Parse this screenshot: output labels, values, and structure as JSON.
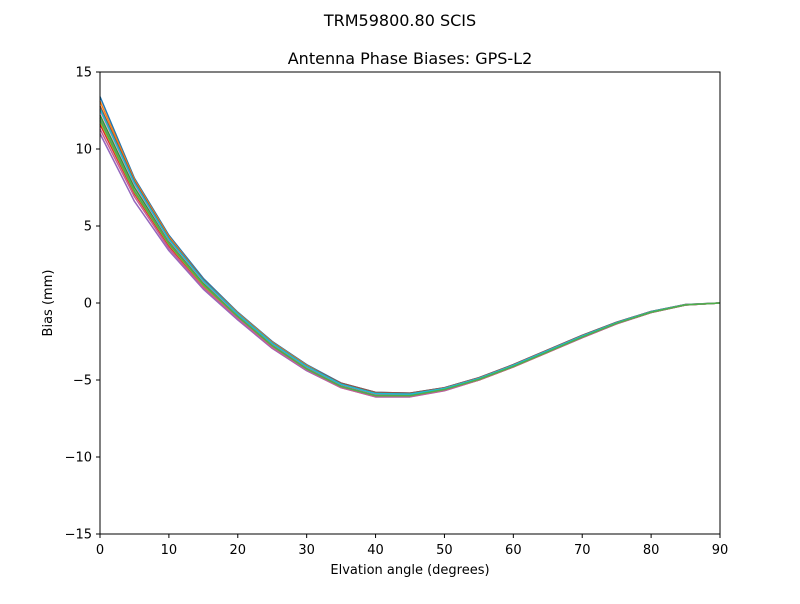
{
  "suptitle": "TRM59800.80      SCIS",
  "chart_data": {
    "type": "line",
    "title": "Antenna Phase Biases: GPS-L2",
    "xlabel": "Elvation angle (degrees)",
    "ylabel": "Bias (mm)",
    "xlim": [
      0,
      90
    ],
    "ylim": [
      -15,
      15
    ],
    "xticks": [
      0,
      10,
      20,
      30,
      40,
      50,
      60,
      70,
      80,
      90
    ],
    "yticks": [
      -15,
      -10,
      -5,
      0,
      5,
      10,
      15
    ],
    "xtick_labels": [
      "0",
      "10",
      "20",
      "30",
      "40",
      "50",
      "60",
      "70",
      "80",
      "90"
    ],
    "ytick_labels": [
      "−15",
      "−10",
      "−5",
      "0",
      "5",
      "10",
      "15"
    ],
    "grid": false,
    "legend": "none",
    "x": [
      0,
      5,
      10,
      15,
      20,
      25,
      30,
      35,
      40,
      45,
      50,
      55,
      60,
      65,
      70,
      75,
      80,
      85,
      90
    ],
    "series": [
      {
        "color": "#1f77b4",
        "values": [
          13.4,
          8.1,
          4.4,
          1.6,
          -0.6,
          -2.5,
          -4.0,
          -5.2,
          -5.8,
          -5.85,
          -5.5,
          -4.85,
          -4.0,
          -3.05,
          -2.1,
          -1.25,
          -0.55,
          -0.1,
          0.0
        ]
      },
      {
        "color": "#ff7f0e",
        "values": [
          13.1,
          8.0,
          4.3,
          1.5,
          -0.65,
          -2.55,
          -4.05,
          -5.25,
          -5.85,
          -5.9,
          -5.55,
          -4.9,
          -4.05,
          -3.1,
          -2.15,
          -1.3,
          -0.6,
          -0.12,
          0.0
        ]
      },
      {
        "color": "#2ca02c",
        "values": [
          12.2,
          7.5,
          4.0,
          1.3,
          -0.8,
          -2.7,
          -4.2,
          -5.35,
          -5.95,
          -6.0,
          -5.6,
          -4.95,
          -4.1,
          -3.15,
          -2.2,
          -1.3,
          -0.6,
          -0.12,
          0.0
        ]
      },
      {
        "color": "#d62728",
        "values": [
          11.6,
          7.1,
          3.7,
          1.1,
          -0.95,
          -2.8,
          -4.3,
          -5.45,
          -6.05,
          -6.05,
          -5.65,
          -5.0,
          -4.15,
          -3.2,
          -2.25,
          -1.35,
          -0.62,
          -0.13,
          0.0
        ]
      },
      {
        "color": "#9467bd",
        "values": [
          11.0,
          6.6,
          3.4,
          0.9,
          -1.1,
          -2.95,
          -4.4,
          -5.5,
          -6.1,
          -6.1,
          -5.7,
          -5.0,
          -4.15,
          -3.2,
          -2.25,
          -1.35,
          -0.62,
          -0.13,
          0.0
        ]
      },
      {
        "color": "#8c564b",
        "values": [
          12.8,
          7.9,
          4.2,
          1.5,
          -0.7,
          -2.6,
          -4.1,
          -5.2,
          -5.8,
          -5.85,
          -5.5,
          -4.85,
          -4.0,
          -3.05,
          -2.1,
          -1.25,
          -0.55,
          -0.1,
          0.0
        ]
      },
      {
        "color": "#e377c2",
        "values": [
          12.5,
          7.7,
          4.1,
          1.4,
          -0.75,
          -2.65,
          -4.15,
          -5.3,
          -5.9,
          -5.95,
          -5.55,
          -4.9,
          -4.05,
          -3.1,
          -2.15,
          -1.3,
          -0.58,
          -0.11,
          0.0
        ]
      },
      {
        "color": "#7f7f7f",
        "values": [
          12.0,
          7.3,
          3.9,
          1.2,
          -0.85,
          -2.75,
          -4.25,
          -5.4,
          -6.0,
          -6.0,
          -5.6,
          -4.95,
          -4.1,
          -3.15,
          -2.2,
          -1.32,
          -0.6,
          -0.12,
          0.0
        ]
      },
      {
        "color": "#bcbd22",
        "values": [
          11.8,
          7.2,
          3.8,
          1.15,
          -0.9,
          -2.8,
          -4.3,
          -5.45,
          -6.05,
          -6.05,
          -5.65,
          -5.0,
          -4.15,
          -3.2,
          -2.22,
          -1.33,
          -0.61,
          -0.12,
          0.0
        ]
      },
      {
        "color": "#17becf",
        "values": [
          12.6,
          7.8,
          4.15,
          1.45,
          -0.72,
          -2.62,
          -4.12,
          -5.28,
          -5.88,
          -5.92,
          -5.55,
          -4.9,
          -4.05,
          -3.1,
          -2.15,
          -1.28,
          -0.57,
          -0.11,
          0.0
        ]
      },
      {
        "color": "#c95f8f",
        "values": [
          11.3,
          6.9,
          3.55,
          1.0,
          -1.0,
          -2.9,
          -4.35,
          -5.5,
          -6.08,
          -6.08,
          -5.68,
          -5.0,
          -4.15,
          -3.2,
          -2.24,
          -1.34,
          -0.62,
          -0.13,
          0.0
        ]
      },
      {
        "color": "#4daf4a",
        "values": [
          11.9,
          7.25,
          3.85,
          1.2,
          -0.88,
          -2.78,
          -4.28,
          -5.42,
          -6.02,
          -6.02,
          -5.62,
          -4.96,
          -4.12,
          -3.17,
          -2.21,
          -1.32,
          -0.6,
          -0.12,
          0.0
        ]
      }
    ]
  }
}
